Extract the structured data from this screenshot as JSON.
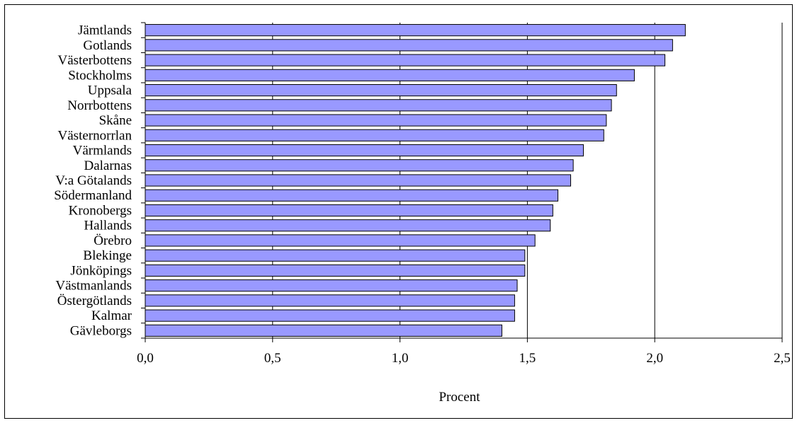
{
  "chart_data": {
    "type": "bar",
    "orientation": "horizontal",
    "categories": [
      "Jämtlands",
      "Gotlands",
      "Västerbottens",
      "Stockholms",
      "Uppsala",
      "Norrbottens",
      "Skåne",
      "Västernorrlan",
      "Värmlands",
      "Dalarnas",
      "V:a Götalands",
      "Södermanland",
      "Kronobergs",
      "Hallands",
      "Örebro",
      "Blekinge",
      "Jönköpings",
      "Västmanlands",
      "Östergötlands",
      "Kalmar",
      "Gävleborgs"
    ],
    "values": [
      2.12,
      2.07,
      2.04,
      1.92,
      1.85,
      1.83,
      1.81,
      1.8,
      1.72,
      1.68,
      1.67,
      1.62,
      1.6,
      1.59,
      1.53,
      1.49,
      1.49,
      1.46,
      1.45,
      1.45,
      1.4
    ],
    "xlabel": "Procent",
    "ylabel": "",
    "xlim": [
      0,
      2.5
    ],
    "x_ticks": [
      "0,0",
      "0,5",
      "1,0",
      "1,5",
      "2,0",
      "2,5"
    ],
    "x_tick_values": [
      0,
      0.5,
      1.0,
      1.5,
      2.0,
      2.5
    ],
    "grid": "vertical",
    "bar_color": "#9999ff",
    "bar_border_color": "#000000",
    "legend": "none"
  }
}
